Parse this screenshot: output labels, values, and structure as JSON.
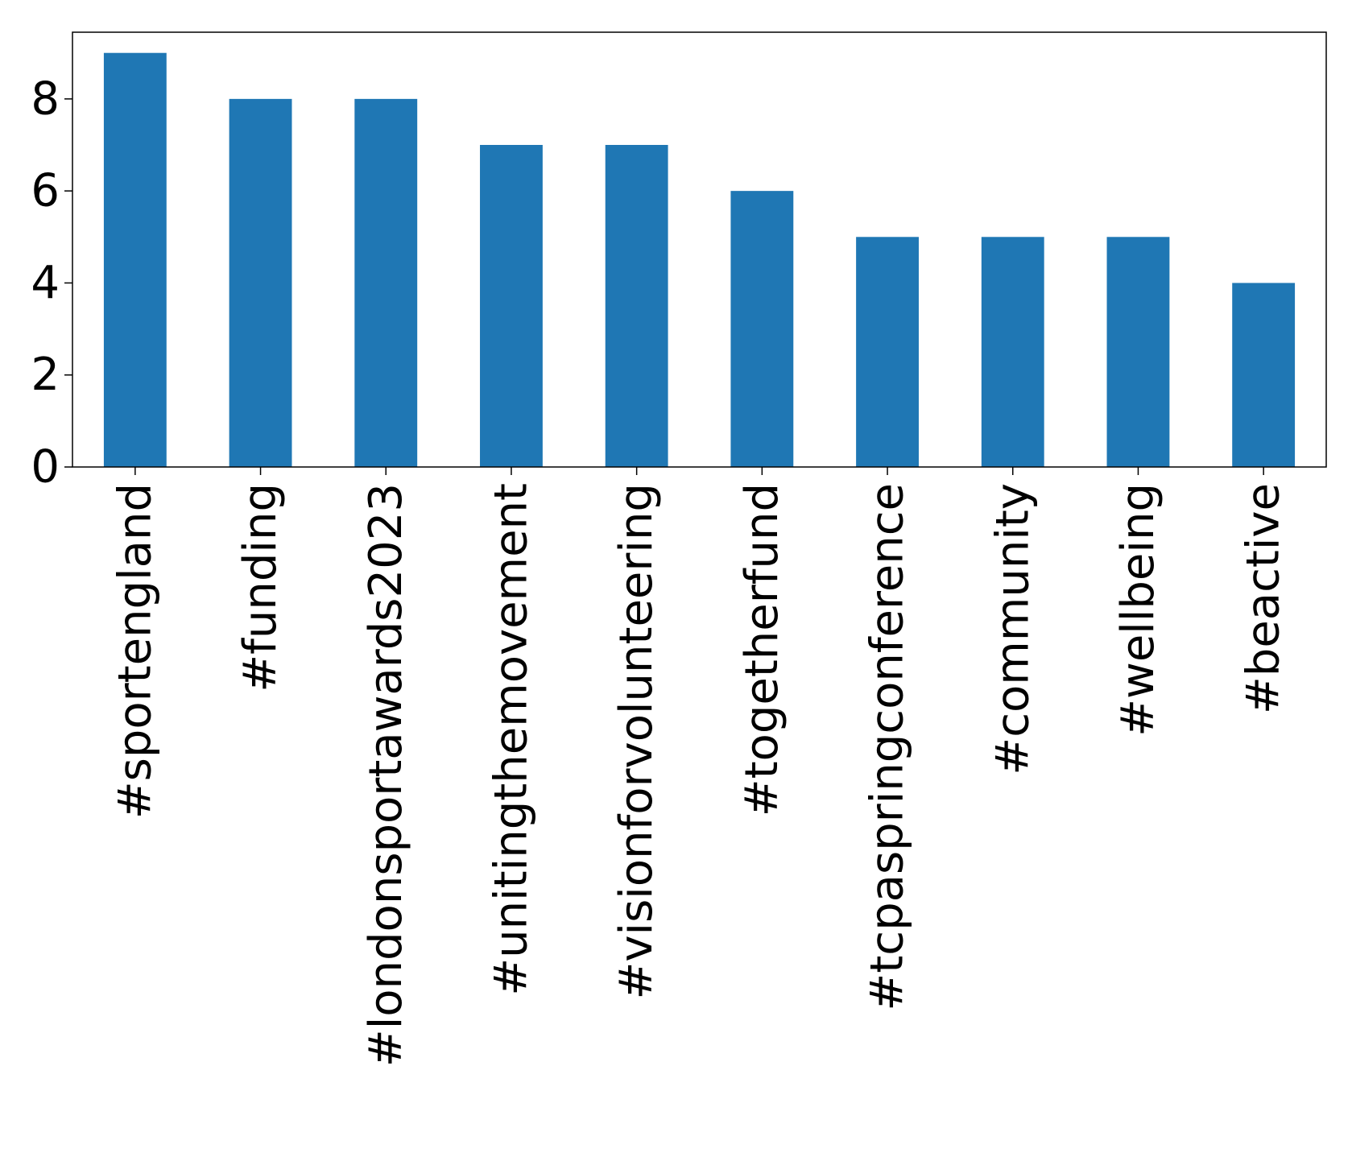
{
  "chart_data": {
    "type": "bar",
    "categories": [
      "#sportengland",
      "#funding",
      "#londonsportawards2023",
      "#unitingthemovement",
      "#visionforvolunteering",
      "#togetherfund",
      "#tcpaspringconference",
      "#community",
      "#wellbeing",
      "#beactive"
    ],
    "values": [
      9,
      8,
      8,
      7,
      7,
      6,
      5,
      5,
      5,
      4
    ],
    "title": "",
    "xlabel": "",
    "ylabel": "",
    "ylim": [
      0,
      9.45
    ],
    "yticks": [
      0,
      2,
      4,
      6,
      8
    ],
    "bar_color": "#1f77b4",
    "grid": false,
    "legend": "none"
  }
}
